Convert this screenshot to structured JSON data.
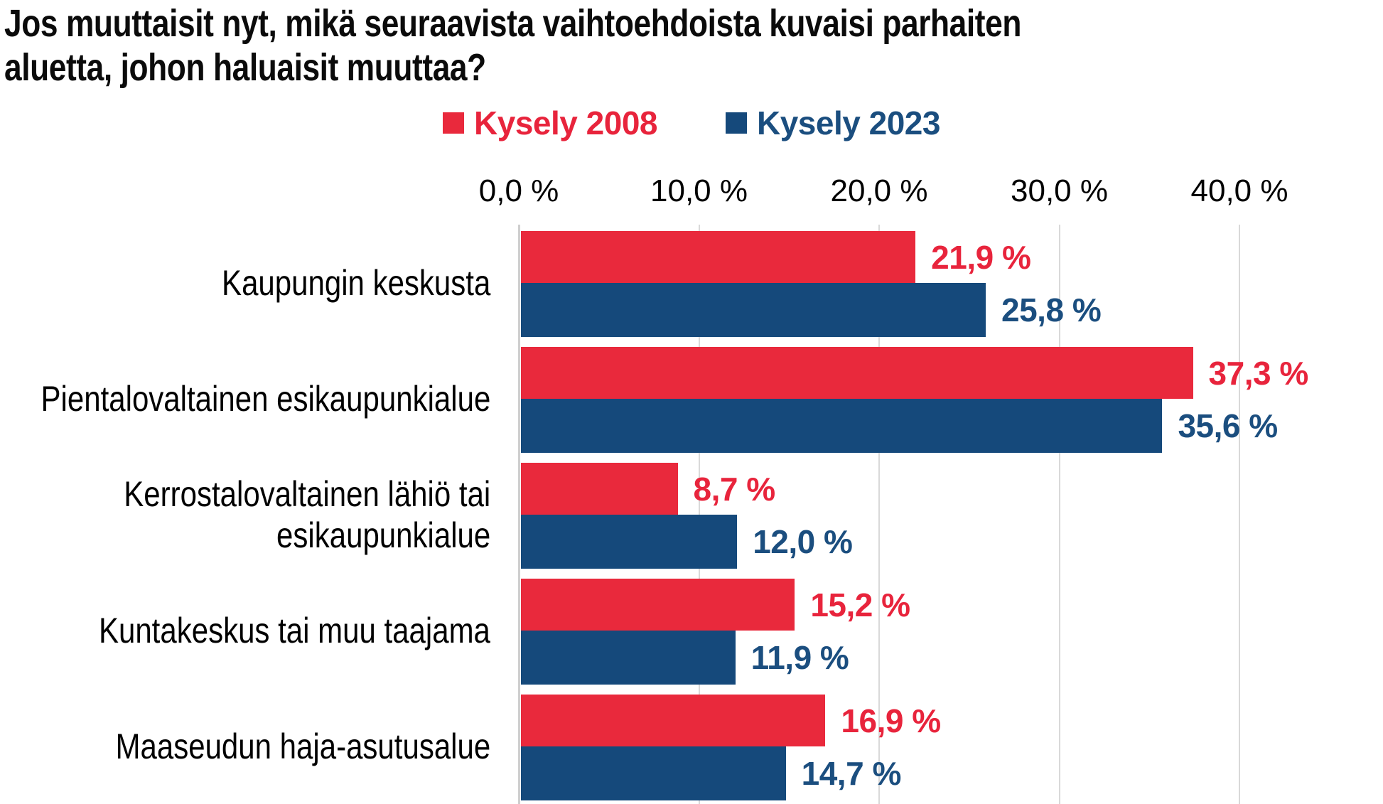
{
  "title": {
    "line1": "Jos muuttaisit nyt, mikä seuraavista vaihtoehdoista kuvaisi parhaiten",
    "line2": "aluetta, johon haluaisit muuttaa?"
  },
  "legend": [
    {
      "label": "Kysely 2008",
      "color": "#e9293c",
      "text_color": "#e8243c"
    },
    {
      "label": "Kysely 2023",
      "color": "#15497b",
      "text_color": "#1b4e7f"
    }
  ],
  "chart_data": {
    "type": "bar",
    "orientation": "horizontal",
    "title": "Jos muuttaisit nyt, mikä seuraavista vaihtoehdoista kuvaisi parhaiten aluetta, johon haluaisit muuttaa?",
    "categories": [
      "Kaupungin keskusta",
      "Pientalovaltainen esikaupunkialue",
      "Kerrostalovaltainen lähiö tai esikaupunkialue",
      "Kuntakeskus tai muu taajama",
      "Maaseudun haja-asutusalue"
    ],
    "category_label_lines": [
      [
        "Kaupungin keskusta"
      ],
      [
        "Pientalovaltainen esikaupunkialue"
      ],
      [
        "Kerrostalovaltainen lähiö tai",
        "esikaupunkialue"
      ],
      [
        "Kuntakeskus tai muu taajama"
      ],
      [
        "Maaseudun haja-asutusalue"
      ]
    ],
    "series": [
      {
        "name": "Kysely 2008",
        "color": "#e9293c",
        "label_color": "#e8243c",
        "values": [
          21.9,
          37.3,
          8.7,
          15.2,
          16.9
        ],
        "value_labels": [
          "21,9 %",
          "37,3 %",
          "8,7 %",
          "15,2 %",
          "16,9 %"
        ]
      },
      {
        "name": "Kysely 2023",
        "color": "#15497b",
        "label_color": "#1b4e7f",
        "values": [
          25.8,
          35.6,
          12.0,
          11.9,
          14.7
        ],
        "value_labels": [
          "25,8 %",
          "35,6 %",
          "12,0 %",
          "11,9 %",
          "14,7 %"
        ]
      }
    ],
    "x_ticks": [
      "0,0 %",
      "10,0 %",
      "20,0 %",
      "30,0 %",
      "40,0 %"
    ],
    "x_tick_values": [
      0,
      10,
      20,
      30,
      40
    ],
    "xlim": [
      0,
      48
    ],
    "grid": true,
    "gridline_color": "#d9d9d9",
    "legend_position": "top",
    "value_label_format": "finnish-comma-percent"
  }
}
